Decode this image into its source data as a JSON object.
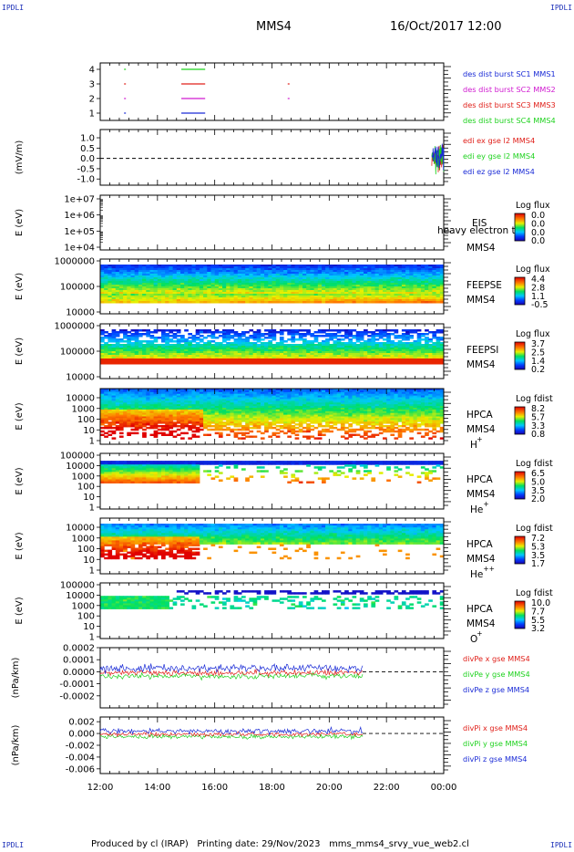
{
  "corner_labels": [
    "IPDLI",
    "IPDLI",
    "IPDLI",
    "IPDLI"
  ],
  "header": {
    "spacecraft": "MMS4",
    "datetime": "16/Oct/2017 12:00"
  },
  "footer": {
    "produced_by": "Produced by cl (IRAP)",
    "printing_date": "Printing date: 29/Nov/2023",
    "script": "mms_mms4_srvy_vue_web2.cl"
  },
  "colors": {
    "red": "#e0201a",
    "green": "#1fd21f",
    "blue": "#1a2bd6",
    "magenta": "#d01ad0"
  },
  "chart_data": [
    {
      "type": "line",
      "panel": "burst",
      "x_range": [
        "12:00",
        "00:00"
      ],
      "ylim": [
        0.5,
        4.5
      ],
      "yticks": [
        "4",
        "3",
        "2",
        "1"
      ],
      "series": [
        {
          "name": "des dist burst SC1 MMS1",
          "color": "#1a2bd6",
          "y": 1,
          "intervals": [
            [
              "12:50",
              "12:52"
            ],
            [
              "14:50",
              "15:40"
            ]
          ]
        },
        {
          "name": "des dist burst SC2 MMS2",
          "color": "#d01ad0",
          "y": 2,
          "intervals": [
            [
              "12:50",
              "12:52"
            ],
            [
              "14:50",
              "15:40"
            ],
            [
              "18:33",
              "18:35"
            ]
          ]
        },
        {
          "name": "des dist burst SC3 MMS3",
          "color": "#e0201a",
          "y": 3,
          "intervals": [
            [
              "12:50",
              "12:52"
            ],
            [
              "14:50",
              "15:40"
            ],
            [
              "18:33",
              "18:35"
            ]
          ]
        },
        {
          "name": "des dist burst SC4 MMS4",
          "color": "#1fd21f",
          "y": 4,
          "intervals": [
            [
              "12:50",
              "12:52"
            ],
            [
              "14:50",
              "15:40"
            ]
          ]
        }
      ]
    },
    {
      "type": "line",
      "panel": "edi",
      "ylabel": "(mV/m)",
      "ylim": [
        -1.3,
        1.4
      ],
      "yticks": [
        "1.0",
        "0.5",
        "0.0",
        "-0.5",
        "-1.0"
      ],
      "reference_line": 0.0,
      "series": [
        {
          "name": "edi ex gse l2 MMS4",
          "color": "#e0201a"
        },
        {
          "name": "edi ey gse l2 MMS4",
          "color": "#1fd21f"
        },
        {
          "name": "edi ez gse l2 MMS4",
          "color": "#1a2bd6"
        }
      ],
      "data_interval": [
        "23:35",
        "00:00"
      ]
    },
    {
      "type": "heatmap",
      "panel": "eis",
      "ylabel": "E (eV)",
      "yticks": [
        "1e+07",
        "1e+06",
        "1e+05",
        "1e+04"
      ],
      "instrument": [
        "EIS",
        "MMS4"
      ],
      "overlay_text": "heavy electron to",
      "colorbar_title": "Log flux",
      "colorbar_ticks": [
        "0.0",
        "0.0",
        "0.0",
        "0.0"
      ],
      "empty": true
    },
    {
      "type": "heatmap",
      "panel": "feeps_e",
      "ylabel": "E (eV)",
      "yticks": [
        "1000000",
        "100000",
        "10000"
      ],
      "instrument": [
        "FEEPSE",
        "MMS4"
      ],
      "colorbar_title": "Log flux",
      "colorbar_ticks": [
        "4.4",
        "2.8",
        "1.1",
        "-0.5"
      ]
    },
    {
      "type": "heatmap",
      "panel": "feeps_i",
      "ylabel": "E (eV)",
      "yticks": [
        "1000000",
        "100000",
        "10000"
      ],
      "instrument": [
        "FEEPSI",
        "MMS4"
      ],
      "colorbar_title": "Log flux",
      "colorbar_ticks": [
        "3.7",
        "2.5",
        "1.4",
        "0.2"
      ]
    },
    {
      "type": "heatmap",
      "panel": "hpca_h",
      "ylabel": "E (eV)",
      "yticks": [
        "10000",
        "1000",
        "100",
        "10",
        "1"
      ],
      "instrument": [
        "HPCA",
        "MMS4",
        "H",
        "+"
      ],
      "colorbar_title": "Log fdist",
      "colorbar_ticks": [
        "8.2",
        "5.7",
        "3.3",
        "0.8"
      ]
    },
    {
      "type": "heatmap",
      "panel": "hpca_he1",
      "ylabel": "E (eV)",
      "yticks": [
        "100000",
        "10000",
        "1000",
        "100",
        "10",
        "1"
      ],
      "instrument": [
        "HPCA",
        "MMS4",
        "He",
        "+"
      ],
      "colorbar_title": "Log fdist",
      "colorbar_ticks": [
        "6.5",
        "5.0",
        "3.5",
        "2.0"
      ]
    },
    {
      "type": "heatmap",
      "panel": "hpca_he2",
      "ylabel": "E (eV)",
      "yticks": [
        "10000",
        "1000",
        "100",
        "10",
        "1"
      ],
      "instrument": [
        "HPCA",
        "MMS4",
        "He",
        "++"
      ],
      "colorbar_title": "Log fdist",
      "colorbar_ticks": [
        "7.2",
        "5.3",
        "3.5",
        "1.7"
      ]
    },
    {
      "type": "heatmap",
      "panel": "hpca_o",
      "ylabel": "E (eV)",
      "yticks": [
        "100000",
        "10000",
        "1000",
        "100",
        "10",
        "1"
      ],
      "instrument": [
        "HPCA",
        "MMS4",
        "O",
        "+"
      ],
      "colorbar_title": "Log fdist",
      "colorbar_ticks": [
        "10.0",
        "7.7",
        "5.5",
        "3.2"
      ]
    },
    {
      "type": "line",
      "panel": "divpe",
      "ylabel": "(nPa/km)",
      "ylim": [
        -0.0003,
        0.0002
      ],
      "yticks": [
        "0.0002",
        "0.0001",
        "0.0000",
        "-0.0001",
        "-0.0002"
      ],
      "reference_line": 0.0,
      "series": [
        {
          "name": "divPe x gse MMS4",
          "color": "#e0201a"
        },
        {
          "name": "divPe y gse MMS4",
          "color": "#1fd21f"
        },
        {
          "name": "divPe z gse MMS4",
          "color": "#1a2bd6"
        }
      ],
      "data_interval": [
        "12:00",
        "21:10"
      ]
    },
    {
      "type": "line",
      "panel": "divpi",
      "ylabel": "(nPa/km)",
      "ylim": [
        -0.0068,
        0.0028
      ],
      "yticks": [
        "0.002",
        "0.000",
        "-0.002",
        "-0.004",
        "-0.006"
      ],
      "reference_line": 0.0,
      "series": [
        {
          "name": "divPi x gse MMS4",
          "color": "#e0201a"
        },
        {
          "name": "divPi y gse MMS4",
          "color": "#1fd21f"
        },
        {
          "name": "divPi z gse MMS4",
          "color": "#1a2bd6"
        }
      ],
      "data_interval": [
        "12:00",
        "21:10"
      ]
    }
  ],
  "time_axis": {
    "ticks": [
      "12:00",
      "14:00",
      "16:00",
      "18:00",
      "20:00",
      "22:00",
      "00:00"
    ]
  }
}
